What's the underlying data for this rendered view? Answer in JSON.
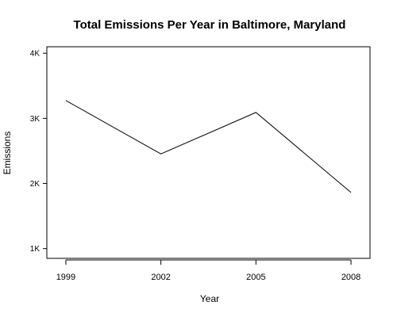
{
  "chart_data": {
    "type": "line",
    "title": "Total Emissions Per Year in Baltimore, Maryland",
    "xlabel": "Year",
    "ylabel": "Emissions",
    "x": [
      1999,
      2002,
      2005,
      2008
    ],
    "x_tick_labels": [
      "1999",
      "2002",
      "2005",
      "2008"
    ],
    "y_ticks": [
      1000,
      2000,
      3000,
      4000
    ],
    "y_tick_labels": [
      "1K",
      "2K",
      "3K",
      "4K"
    ],
    "ylim": [
      850,
      4100
    ],
    "xlim": [
      1998.4,
      2008.6
    ],
    "series": [
      {
        "values": [
          3274,
          2454,
          3091,
          1862
        ],
        "color": "#000000"
      }
    ],
    "grid": false,
    "legend": "none"
  }
}
